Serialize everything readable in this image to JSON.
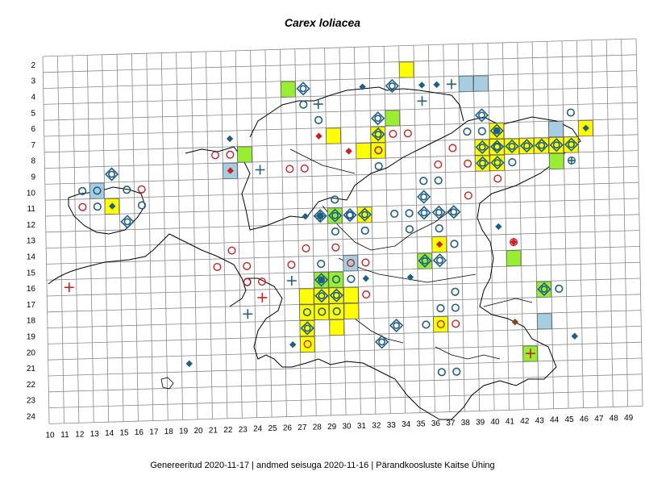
{
  "title": "Carex loliacea",
  "footer": {
    "generated": "Genereeritud 2020-11-17",
    "data_state": "andmed seisuga 2020-11-16",
    "org": "Pärandkoosluste Kaitse Ühing",
    "separator": "|"
  },
  "grid": {
    "row_labels": [
      "2",
      "3",
      "4",
      "5",
      "6",
      "7",
      "8",
      "9",
      "10",
      "11",
      "12",
      "13",
      "14",
      "15",
      "16",
      "17",
      "18",
      "19",
      "20",
      "21",
      "22",
      "23",
      "24"
    ],
    "col_labels": [
      "10",
      "11",
      "12",
      "13",
      "14",
      "15",
      "16",
      "17",
      "18",
      "19",
      "20",
      "21",
      "22",
      "23",
      "24",
      "25",
      "26",
      "27",
      "28",
      "29",
      "30",
      "31",
      "32",
      "33",
      "34",
      "35",
      "36",
      "37",
      "38",
      "39",
      "40",
      "41",
      "42",
      "43",
      "44",
      "45",
      "46",
      "47",
      "48",
      "49"
    ]
  },
  "legend_colors": {
    "yellow_square": "#ffff00",
    "green_square": "#99ee33",
    "blue_square": "#a6cde0",
    "blue_marker": "#1f5e85",
    "red_marker": "#cc1f1f",
    "brown_marker": "#8b4513"
  },
  "cells": {
    "yellow": [
      [
        34,
        3
      ],
      [
        32,
        7
      ],
      [
        29,
        7
      ],
      [
        31,
        8
      ],
      [
        32,
        8
      ],
      [
        40,
        7
      ],
      [
        39,
        8
      ],
      [
        40,
        8
      ],
      [
        41,
        8
      ],
      [
        42,
        8
      ],
      [
        43,
        8
      ],
      [
        44,
        8
      ],
      [
        45,
        8
      ],
      [
        46,
        7
      ],
      [
        39,
        9
      ],
      [
        40,
        9
      ],
      [
        14,
        11
      ],
      [
        31,
        12
      ],
      [
        36,
        14
      ],
      [
        27,
        17
      ],
      [
        28,
        17
      ],
      [
        29,
        17
      ],
      [
        30,
        17
      ],
      [
        27,
        18
      ],
      [
        28,
        18
      ],
      [
        29,
        18
      ],
      [
        30,
        18
      ],
      [
        27,
        19
      ],
      [
        29,
        19
      ],
      [
        36,
        19
      ],
      [
        27,
        20
      ]
    ],
    "green": [
      [
        26,
        4
      ],
      [
        33,
        6
      ],
      [
        23,
        8
      ],
      [
        29,
        12
      ],
      [
        35,
        15
      ],
      [
        41,
        15
      ],
      [
        28,
        16
      ],
      [
        29,
        16
      ],
      [
        43,
        17
      ],
      [
        42,
        21
      ],
      [
        44,
        9
      ]
    ],
    "blue": [
      [
        38,
        4
      ],
      [
        39,
        4
      ],
      [
        44,
        7
      ],
      [
        22,
        9
      ],
      [
        13,
        10
      ],
      [
        30,
        15
      ],
      [
        43,
        19
      ]
    ]
  },
  "markers": {
    "blue_diamond_ring": [
      [
        27,
        4
      ],
      [
        33,
        4
      ],
      [
        32,
        6
      ],
      [
        32,
        7
      ],
      [
        39,
        6
      ],
      [
        40,
        7
      ],
      [
        39,
        8
      ],
      [
        40,
        8
      ],
      [
        41,
        8
      ],
      [
        42,
        8
      ],
      [
        43,
        8
      ],
      [
        44,
        8
      ],
      [
        45,
        8
      ],
      [
        39,
        9
      ],
      [
        40,
        9
      ],
      [
        14,
        9
      ],
      [
        15,
        12
      ],
      [
        28,
        12
      ],
      [
        29,
        12
      ],
      [
        30,
        12
      ],
      [
        31,
        12
      ],
      [
        35,
        11
      ],
      [
        35,
        12
      ],
      [
        36,
        12
      ],
      [
        37,
        12
      ],
      [
        35,
        15
      ],
      [
        36,
        15
      ],
      [
        28,
        16
      ],
      [
        43,
        17
      ],
      [
        28,
        17
      ],
      [
        29,
        17
      ],
      [
        27,
        19
      ],
      [
        33,
        19
      ],
      [
        32,
        20
      ]
    ],
    "blue_ring": [
      [
        27,
        5
      ],
      [
        28,
        6
      ],
      [
        38,
        7
      ],
      [
        32,
        8
      ],
      [
        39,
        7
      ],
      [
        40,
        8
      ],
      [
        45,
        6
      ],
      [
        41,
        9
      ],
      [
        32,
        9
      ],
      [
        35,
        10
      ],
      [
        36,
        10
      ],
      [
        12,
        10
      ],
      [
        13,
        10
      ],
      [
        15,
        10
      ],
      [
        13,
        11
      ],
      [
        16,
        11
      ],
      [
        29,
        11
      ],
      [
        33,
        12
      ],
      [
        34,
        12
      ],
      [
        30,
        12
      ],
      [
        29,
        13
      ],
      [
        31,
        13
      ],
      [
        34,
        13
      ],
      [
        36,
        13
      ],
      [
        37,
        14
      ],
      [
        23,
        16
      ],
      [
        28,
        15
      ],
      [
        29,
        16
      ],
      [
        27,
        18
      ],
      [
        28,
        18
      ],
      [
        29,
        18
      ],
      [
        35,
        19
      ],
      [
        36,
        18
      ],
      [
        37,
        17
      ],
      [
        37,
        18
      ],
      [
        44,
        17
      ],
      [
        36,
        22
      ],
      [
        37,
        22
      ],
      [
        30,
        16
      ]
    ],
    "red_ring": [
      [
        21,
        8
      ],
      [
        22,
        8
      ],
      [
        37,
        8
      ],
      [
        33,
        7
      ],
      [
        34,
        7
      ],
      [
        32,
        8
      ],
      [
        36,
        9
      ],
      [
        38,
        9
      ],
      [
        40,
        10
      ],
      [
        12,
        11
      ],
      [
        16,
        10
      ],
      [
        26,
        9
      ],
      [
        27,
        9
      ],
      [
        38,
        11
      ],
      [
        22,
        14
      ],
      [
        26,
        15
      ],
      [
        21,
        15
      ],
      [
        23,
        15
      ],
      [
        24,
        16
      ],
      [
        27,
        14
      ],
      [
        29,
        14
      ],
      [
        30,
        15
      ],
      [
        31,
        15
      ],
      [
        23,
        16
      ],
      [
        41,
        14
      ],
      [
        36,
        19
      ],
      [
        37,
        19
      ],
      [
        27,
        20
      ],
      [
        31,
        17
      ]
    ],
    "blue_diamond": [
      [
        22,
        7
      ],
      [
        31,
        4
      ],
      [
        35,
        4
      ],
      [
        36,
        4
      ],
      [
        28,
        12
      ],
      [
        27,
        12
      ],
      [
        28,
        16
      ],
      [
        31,
        16
      ],
      [
        34,
        16
      ],
      [
        40,
        13
      ],
      [
        26,
        20
      ],
      [
        19,
        21
      ],
      [
        45,
        20
      ],
      [
        46,
        7
      ],
      [
        40,
        7
      ],
      [
        14,
        11
      ]
    ],
    "red_diamond": [
      [
        28,
        7
      ],
      [
        30,
        8
      ],
      [
        22,
        9
      ],
      [
        36,
        14
      ],
      [
        41,
        14
      ]
    ],
    "brown_diamond": [
      [
        41,
        19
      ]
    ],
    "blue_cross": [
      [
        24,
        9
      ],
      [
        28,
        5
      ],
      [
        35,
        5
      ],
      [
        37,
        4
      ],
      [
        26,
        16
      ],
      [
        23,
        18
      ],
      [
        28,
        12
      ]
    ],
    "red_cross": [
      [
        11,
        16
      ],
      [
        24,
        17
      ],
      [
        42,
        21
      ]
    ],
    "blue_circle_cross": [
      [
        45,
        9
      ]
    ]
  }
}
